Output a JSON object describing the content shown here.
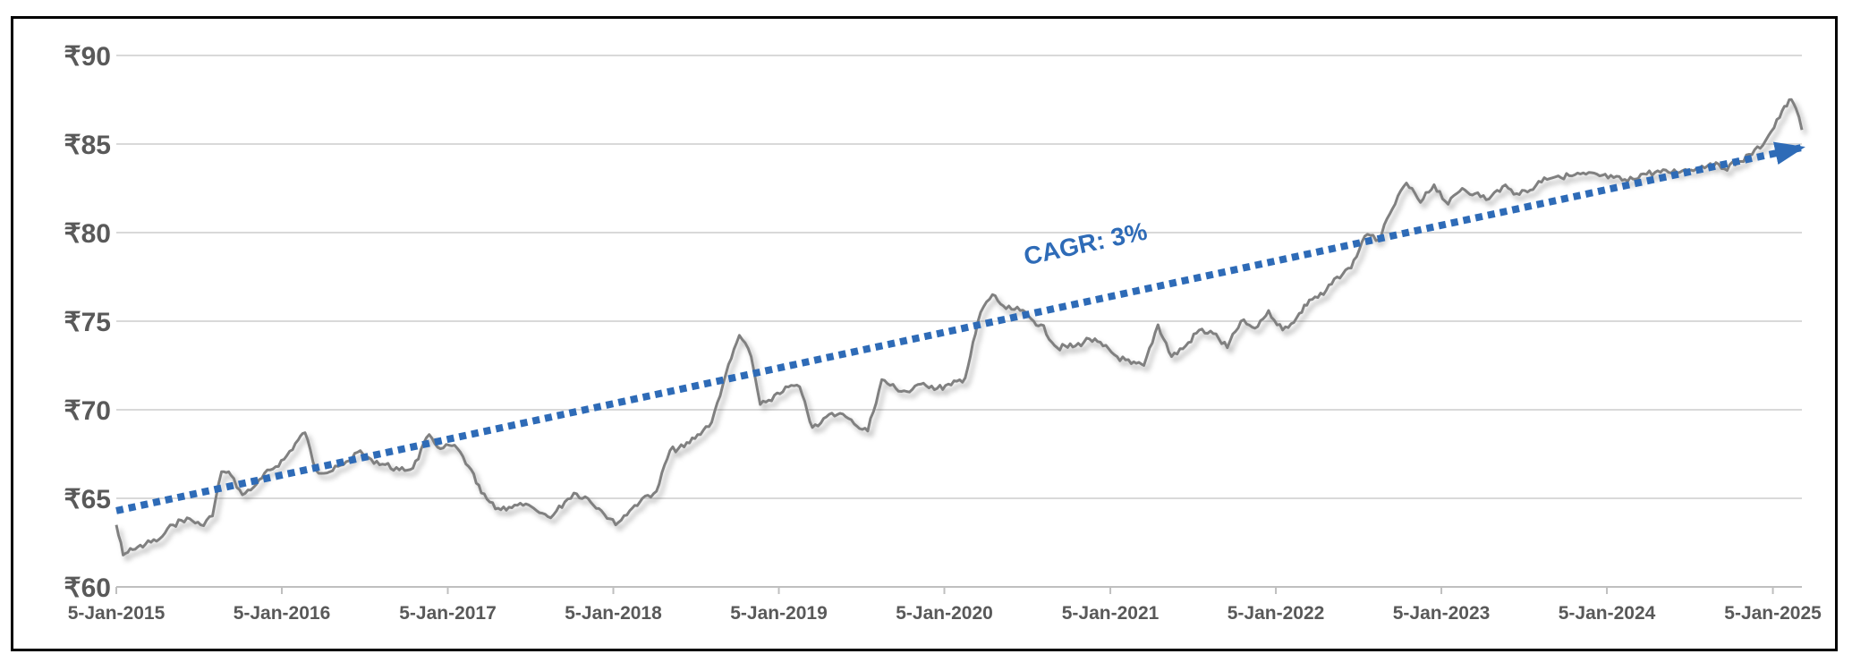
{
  "chart_data": {
    "type": "line",
    "title": "",
    "xlabel": "",
    "ylabel": "",
    "ylim": [
      60,
      90
    ],
    "y_ticks": [
      60,
      65,
      70,
      75,
      80,
      85,
      90
    ],
    "y_tick_labels": [
      "₹60",
      "₹65",
      "₹70",
      "₹75",
      "₹80",
      "₹85",
      "₹90"
    ],
    "x_tick_labels": [
      "5-Jan-2015",
      "5-Jan-2016",
      "5-Jan-2017",
      "5-Jan-2018",
      "5-Jan-2019",
      "5-Jan-2020",
      "5-Jan-2021",
      "5-Jan-2022",
      "5-Jan-2023",
      "5-Jan-2024",
      "5-Jan-2025"
    ],
    "xlim": [
      "2015-01-05",
      "2025-03-10"
    ],
    "grid": true,
    "legend": "none",
    "series": [
      {
        "color": "#808080",
        "points": [
          [
            "2015-01-05",
            63.5
          ],
          [
            "2015-01-20",
            61.8
          ],
          [
            "2015-02-10",
            62.1
          ],
          [
            "2015-03-10",
            62.4
          ],
          [
            "2015-04-10",
            62.7
          ],
          [
            "2015-05-10",
            63.5
          ],
          [
            "2015-06-10",
            63.9
          ],
          [
            "2015-07-10",
            63.5
          ],
          [
            "2015-08-05",
            64.0
          ],
          [
            "2015-08-25",
            66.5
          ],
          [
            "2015-09-15",
            66.3
          ],
          [
            "2015-10-10",
            65.2
          ],
          [
            "2015-11-10",
            65.8
          ],
          [
            "2015-12-10",
            66.6
          ],
          [
            "2016-01-10",
            67.2
          ],
          [
            "2016-02-10",
            68.3
          ],
          [
            "2016-02-25",
            68.7
          ],
          [
            "2016-03-20",
            66.6
          ],
          [
            "2016-04-20",
            66.5
          ],
          [
            "2016-05-20",
            66.9
          ],
          [
            "2016-06-20",
            67.6
          ],
          [
            "2016-07-20",
            67.2
          ],
          [
            "2016-08-20",
            66.9
          ],
          [
            "2016-09-20",
            66.6
          ],
          [
            "2016-10-20",
            66.7
          ],
          [
            "2016-11-25",
            68.6
          ],
          [
            "2016-12-20",
            67.8
          ],
          [
            "2017-01-20",
            68.0
          ],
          [
            "2017-02-20",
            66.8
          ],
          [
            "2017-03-20",
            65.3
          ],
          [
            "2017-04-20",
            64.4
          ],
          [
            "2017-05-20",
            64.5
          ],
          [
            "2017-06-20",
            64.6
          ],
          [
            "2017-07-20",
            64.3
          ],
          [
            "2017-08-20",
            63.9
          ],
          [
            "2017-09-20",
            64.8
          ],
          [
            "2017-10-10",
            65.3
          ],
          [
            "2017-11-10",
            65.0
          ],
          [
            "2017-12-10",
            64.3
          ],
          [
            "2018-01-10",
            63.5
          ],
          [
            "2018-02-10",
            64.3
          ],
          [
            "2018-03-10",
            65.0
          ],
          [
            "2018-04-10",
            65.4
          ],
          [
            "2018-05-10",
            67.7
          ],
          [
            "2018-06-10",
            67.9
          ],
          [
            "2018-07-10",
            68.6
          ],
          [
            "2018-08-10",
            69.3
          ],
          [
            "2018-09-10",
            72.0
          ],
          [
            "2018-10-10",
            74.2
          ],
          [
            "2018-11-05",
            73.0
          ],
          [
            "2018-11-25",
            70.3
          ],
          [
            "2018-12-20",
            70.5
          ],
          [
            "2019-01-20",
            71.3
          ],
          [
            "2019-02-20",
            71.3
          ],
          [
            "2019-03-20",
            69.0
          ],
          [
            "2019-04-20",
            69.6
          ],
          [
            "2019-05-20",
            69.8
          ],
          [
            "2019-06-20",
            69.2
          ],
          [
            "2019-07-20",
            68.8
          ],
          [
            "2019-08-20",
            71.7
          ],
          [
            "2019-09-20",
            71.2
          ],
          [
            "2019-10-20",
            71.0
          ],
          [
            "2019-11-20",
            71.5
          ],
          [
            "2019-12-20",
            71.2
          ],
          [
            "2020-01-20",
            71.4
          ],
          [
            "2020-02-20",
            71.8
          ],
          [
            "2020-03-25",
            75.5
          ],
          [
            "2020-04-20",
            76.5
          ],
          [
            "2020-05-20",
            75.7
          ],
          [
            "2020-06-20",
            75.6
          ],
          [
            "2020-07-20",
            75.0
          ],
          [
            "2020-08-05",
            74.8
          ],
          [
            "2020-09-10",
            73.5
          ],
          [
            "2020-10-20",
            73.6
          ],
          [
            "2020-11-20",
            74.0
          ],
          [
            "2020-12-20",
            73.6
          ],
          [
            "2021-01-20",
            73.0
          ],
          [
            "2021-02-20",
            72.6
          ],
          [
            "2021-03-20",
            72.5
          ],
          [
            "2021-04-20",
            74.8
          ],
          [
            "2021-05-20",
            73.0
          ],
          [
            "2021-06-20",
            73.6
          ],
          [
            "2021-07-20",
            74.5
          ],
          [
            "2021-08-20",
            74.3
          ],
          [
            "2021-09-20",
            73.5
          ],
          [
            "2021-10-20",
            75.0
          ],
          [
            "2021-11-20",
            74.6
          ],
          [
            "2021-12-20",
            75.6
          ],
          [
            "2022-01-20",
            74.5
          ],
          [
            "2022-02-20",
            75.2
          ],
          [
            "2022-03-20",
            76.2
          ],
          [
            "2022-04-20",
            76.5
          ],
          [
            "2022-05-20",
            77.5
          ],
          [
            "2022-06-20",
            78.0
          ],
          [
            "2022-07-20",
            79.8
          ],
          [
            "2022-08-20",
            79.6
          ],
          [
            "2022-09-25",
            81.6
          ],
          [
            "2022-10-20",
            82.8
          ],
          [
            "2022-11-20",
            81.7
          ],
          [
            "2022-12-20",
            82.7
          ],
          [
            "2023-01-20",
            81.6
          ],
          [
            "2023-02-20",
            82.5
          ],
          [
            "2023-03-20",
            82.2
          ],
          [
            "2023-04-20",
            81.9
          ],
          [
            "2023-05-20",
            82.6
          ],
          [
            "2023-06-20",
            82.2
          ],
          [
            "2023-07-20",
            82.4
          ],
          [
            "2023-08-20",
            83.1
          ],
          [
            "2023-09-20",
            83.2
          ],
          [
            "2023-10-20",
            83.2
          ],
          [
            "2023-11-20",
            83.3
          ],
          [
            "2023-12-20",
            83.2
          ],
          [
            "2024-01-20",
            83.1
          ],
          [
            "2024-02-20",
            82.9
          ],
          [
            "2024-03-20",
            83.3
          ],
          [
            "2024-04-20",
            83.4
          ],
          [
            "2024-05-20",
            83.4
          ],
          [
            "2024-06-20",
            83.5
          ],
          [
            "2024-07-20",
            83.6
          ],
          [
            "2024-08-20",
            83.9
          ],
          [
            "2024-09-20",
            83.6
          ],
          [
            "2024-10-20",
            84.0
          ],
          [
            "2024-11-20",
            84.4
          ],
          [
            "2024-12-20",
            85.2
          ],
          [
            "2025-01-20",
            86.5
          ],
          [
            "2025-02-10",
            87.5
          ],
          [
            "2025-02-25",
            87.0
          ],
          [
            "2025-03-10",
            85.8
          ]
        ]
      }
    ],
    "trendline": {
      "color": "#2E6BB7",
      "style": "dotted",
      "arrow": true,
      "points": [
        [
          "2015-01-05",
          64.3
        ],
        [
          "2025-03-10",
          84.8
        ]
      ]
    },
    "annotations": [
      {
        "text": "CAGR: 3%",
        "x": "2020-11-15",
        "y": 78.9,
        "color": "#2E6BB7"
      }
    ]
  }
}
